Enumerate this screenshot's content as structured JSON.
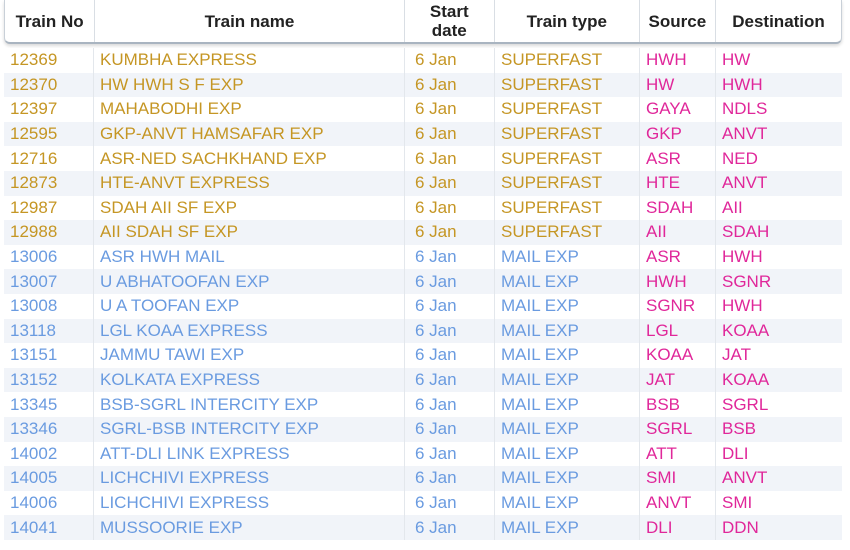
{
  "headers": {
    "train_no": "Train No",
    "train_name": "Train name",
    "start_date_line1": "Start",
    "start_date_line2": "date",
    "train_type": "Train type",
    "source": "Source",
    "destination": "Destination"
  },
  "colors": {
    "superfast_text": "#c59624",
    "mail_text": "#6a9be0",
    "station_text": "#e0279a"
  },
  "rows": [
    {
      "no": "12369",
      "name": "KUMBHA EXPRESS",
      "date": "6 Jan",
      "type": "SUPERFAST",
      "src": "HWH",
      "dst": "HW"
    },
    {
      "no": "12370",
      "name": "HW HWH S F EXP",
      "date": "6 Jan",
      "type": "SUPERFAST",
      "src": "HW",
      "dst": "HWH"
    },
    {
      "no": "12397",
      "name": "MAHABODHI EXP",
      "date": "6 Jan",
      "type": "SUPERFAST",
      "src": "GAYA",
      "dst": "NDLS"
    },
    {
      "no": "12595",
      "name": "GKP-ANVT HAMSAFAR EXP",
      "date": "6 Jan",
      "type": "SUPERFAST",
      "src": "GKP",
      "dst": "ANVT"
    },
    {
      "no": "12716",
      "name": "ASR-NED SACHKHAND EXP",
      "date": "6 Jan",
      "type": "SUPERFAST",
      "src": "ASR",
      "dst": "NED"
    },
    {
      "no": "12873",
      "name": "HTE-ANVT EXPRESS",
      "date": "6 Jan",
      "type": "SUPERFAST",
      "src": "HTE",
      "dst": "ANVT"
    },
    {
      "no": "12987",
      "name": "SDAH AII SF EXP",
      "date": "6 Jan",
      "type": "SUPERFAST",
      "src": "SDAH",
      "dst": "AII"
    },
    {
      "no": "12988",
      "name": "AII SDAH SF EXP",
      "date": "6 Jan",
      "type": "SUPERFAST",
      "src": "AII",
      "dst": "SDAH"
    },
    {
      "no": "13006",
      "name": "ASR HWH MAIL",
      "date": "6 Jan",
      "type": "MAIL EXP",
      "src": "ASR",
      "dst": "HWH"
    },
    {
      "no": "13007",
      "name": "U ABHATOOFAN EXP",
      "date": "6 Jan",
      "type": "MAIL EXP",
      "src": "HWH",
      "dst": "SGNR"
    },
    {
      "no": "13008",
      "name": "U A TOOFAN EXP",
      "date": "6 Jan",
      "type": "MAIL EXP",
      "src": "SGNR",
      "dst": "HWH"
    },
    {
      "no": "13118",
      "name": "LGL KOAA EXPRESS",
      "date": "6 Jan",
      "type": "MAIL EXP",
      "src": "LGL",
      "dst": "KOAA"
    },
    {
      "no": "13151",
      "name": "JAMMU TAWI EXP",
      "date": "6 Jan",
      "type": "MAIL EXP",
      "src": "KOAA",
      "dst": "JAT"
    },
    {
      "no": "13152",
      "name": "KOLKATA EXPRESS",
      "date": "6 Jan",
      "type": "MAIL EXP",
      "src": "JAT",
      "dst": "KOAA"
    },
    {
      "no": "13345",
      "name": "BSB-SGRL INTERCITY EXP",
      "date": "6 Jan",
      "type": "MAIL EXP",
      "src": "BSB",
      "dst": "SGRL"
    },
    {
      "no": "13346",
      "name": "SGRL-BSB INTERCITY EXP",
      "date": "6 Jan",
      "type": "MAIL EXP",
      "src": "SGRL",
      "dst": "BSB"
    },
    {
      "no": "14002",
      "name": "ATT-DLI LINK EXPRESS",
      "date": "6 Jan",
      "type": "MAIL EXP",
      "src": "ATT",
      "dst": "DLI"
    },
    {
      "no": "14005",
      "name": "LICHCHIVI EXPRESS",
      "date": "6 Jan",
      "type": "MAIL EXP",
      "src": "SMI",
      "dst": "ANVT"
    },
    {
      "no": "14006",
      "name": "LICHCHIVI EXPRESS",
      "date": "6 Jan",
      "type": "MAIL EXP",
      "src": "ANVT",
      "dst": "SMI"
    },
    {
      "no": "14041",
      "name": "MUSSOORIE EXP",
      "date": "6 Jan",
      "type": "MAIL EXP",
      "src": "DLI",
      "dst": "DDN"
    }
  ]
}
